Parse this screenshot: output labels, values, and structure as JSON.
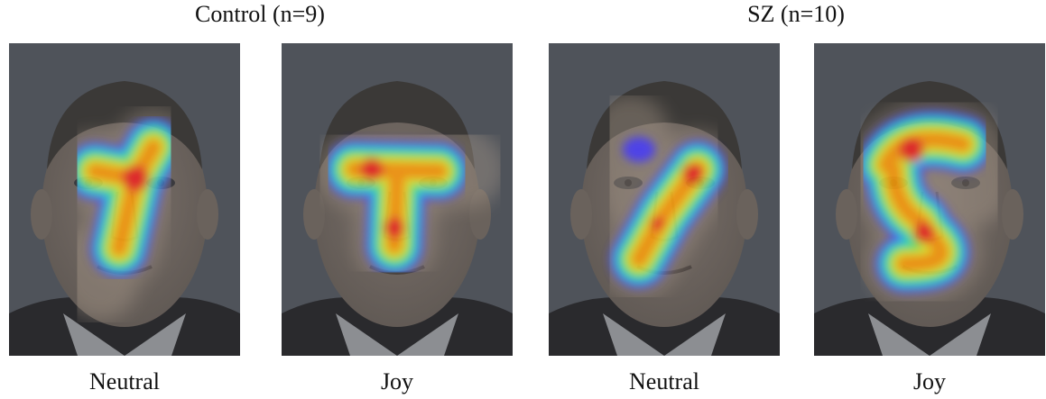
{
  "groups": [
    {
      "title": "Control (n=9)",
      "panels": [
        {
          "label": "Neutral"
        },
        {
          "label": "Joy"
        }
      ]
    },
    {
      "title": "SZ (n=10)",
      "panels": [
        {
          "label": "Neutral"
        },
        {
          "label": "Joy"
        }
      ]
    }
  ]
}
